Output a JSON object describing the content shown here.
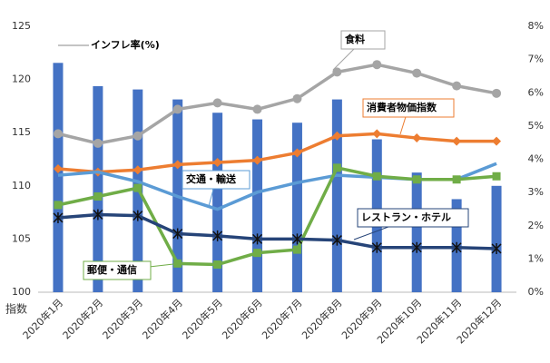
{
  "chart_data": {
    "type": "combo",
    "y_axis_label": "指数",
    "categories": [
      "2020年1月",
      "2020年2月",
      "2020年3月",
      "2020年4月",
      "2020年5月",
      "2020年6月",
      "2020年7月",
      "2020年8月",
      "2020年9月",
      "2020年10月",
      "2020年11月",
      "2020年12月"
    ],
    "ylim": [
      100,
      125
    ],
    "yticks": [
      100,
      105,
      110,
      115,
      120,
      125
    ],
    "y2lim": [
      0,
      8
    ],
    "y2ticks": [
      {
        "value": 0,
        "label": "0%"
      },
      {
        "value": 1,
        "label": "1%"
      },
      {
        "value": 2,
        "label": "2%"
      },
      {
        "value": 3,
        "label": "3%"
      },
      {
        "value": 4,
        "label": "4%"
      },
      {
        "value": 5,
        "label": "5%"
      },
      {
        "value": 6,
        "label": "6%"
      },
      {
        "value": 7,
        "label": "7%"
      },
      {
        "value": 8,
        "label": "8%"
      }
    ],
    "series": [
      {
        "name": "インフレ率(%)",
        "type": "bar",
        "axis": "y2",
        "color": "#4472c4",
        "values": [
          6.9,
          6.2,
          6.1,
          5.8,
          5.4,
          5.2,
          5.1,
          5.8,
          4.6,
          3.6,
          2.8,
          3.2
        ]
      },
      {
        "name": "食料",
        "type": "line",
        "marker": "circle",
        "color": "#a5a5a5",
        "values": [
          114.9,
          114.0,
          114.7,
          117.2,
          117.8,
          117.2,
          118.2,
          120.7,
          121.4,
          120.6,
          119.4,
          118.7
        ]
      },
      {
        "name": "消費者物価指数",
        "type": "line",
        "marker": "diamond",
        "color": "#ed7d31",
        "values": [
          111.6,
          111.3,
          111.5,
          112.0,
          112.2,
          112.4,
          113.1,
          114.7,
          114.9,
          114.5,
          114.2,
          114.2
        ]
      },
      {
        "name": "交通・輸送",
        "type": "line",
        "marker": "none",
        "color": "#5b9bd5",
        "values": [
          111.0,
          111.3,
          110.4,
          109.0,
          107.8,
          109.4,
          110.3,
          111.0,
          110.8,
          110.6,
          110.6,
          112.1
        ]
      },
      {
        "name": "郵便・通信",
        "type": "line",
        "marker": "square",
        "color": "#70ad47",
        "values": [
          108.2,
          109.0,
          109.8,
          102.7,
          102.6,
          103.7,
          104.0,
          111.7,
          110.9,
          110.6,
          110.6,
          110.9
        ]
      },
      {
        "name": "レストラン・ホテル",
        "type": "line",
        "marker": "star",
        "color": "#264478",
        "values": [
          107.0,
          107.3,
          107.2,
          105.5,
          105.3,
          105.0,
          105.0,
          104.9,
          104.2,
          104.2,
          104.2,
          104.1
        ]
      }
    ]
  }
}
